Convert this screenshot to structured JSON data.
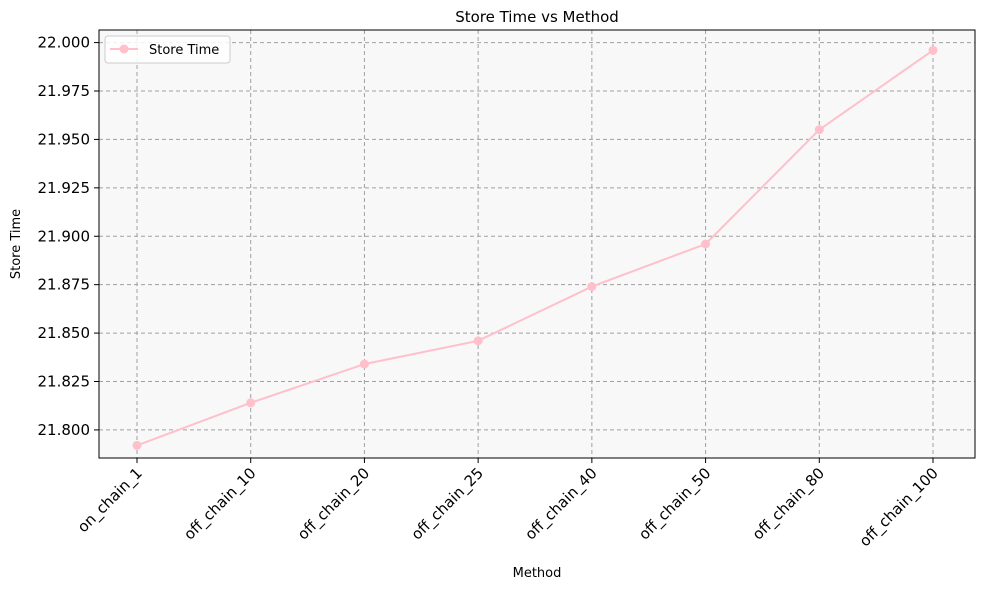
{
  "chart_data": {
    "type": "line",
    "title": "Store Time vs Method",
    "xlabel": "Method",
    "ylabel": "Store Time",
    "categories": [
      "on_chain_1",
      "off_chain_10",
      "off_chain_20",
      "off_chain_25",
      "off_chain_40",
      "off_chain_50",
      "off_chain_80",
      "off_chain_100"
    ],
    "series": [
      {
        "name": "Store Time",
        "color": "#ffc0cb",
        "values": [
          21.792,
          21.814,
          21.834,
          21.846,
          21.874,
          21.896,
          21.955,
          21.996
        ]
      }
    ],
    "ylim": [
      21.7855,
      22.0065
    ],
    "yticks": [
      21.8,
      21.825,
      21.85,
      21.875,
      21.9,
      21.925,
      21.95,
      21.975,
      22.0
    ],
    "ytick_labels": [
      "21.800",
      "21.825",
      "21.850",
      "21.875",
      "21.900",
      "21.925",
      "21.950",
      "21.975",
      "22.000"
    ],
    "grid": true,
    "grid_style": "dashed",
    "legend_position": "top-left",
    "plot_background": "#f8f8f8",
    "x_tick_rotation": "45°"
  }
}
